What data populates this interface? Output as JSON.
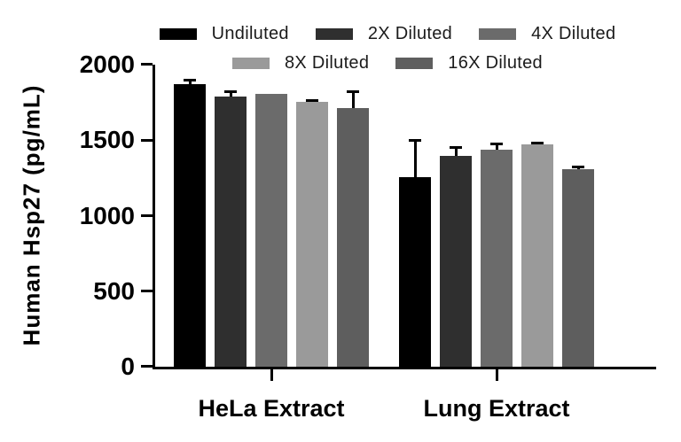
{
  "chart_data": {
    "type": "bar",
    "title": "",
    "ylabel": "Human Hsp27 (pg/mL)",
    "xlabel": "",
    "ylim": [
      0,
      2000
    ],
    "yticks": [
      0,
      500,
      1000,
      1500,
      2000
    ],
    "ytick_labels": [
      "2000",
      "1500",
      "1000",
      "500",
      "0"
    ],
    "categories": [
      "HeLa Extract",
      "Lung Extract"
    ],
    "series": [
      {
        "name": "Undiluted",
        "color": "#000000",
        "values": [
          1870,
          1258
        ],
        "errors_plus": [
          35,
          255
        ]
      },
      {
        "name": "2X Diluted",
        "color": "#2f2f2f",
        "values": [
          1790,
          1398
        ],
        "errors_plus": [
          40,
          65
        ]
      },
      {
        "name": "4X Diluted",
        "color": "#6b6b6b",
        "values": [
          1805,
          1437
        ],
        "errors_plus": [
          0,
          45
        ]
      },
      {
        "name": "8X Diluted",
        "color": "#9a9a9a",
        "values": [
          1755,
          1472
        ],
        "errors_plus": [
          15,
          15
        ]
      },
      {
        "name": "16X Diluted",
        "color": "#5e5e5e",
        "values": [
          1712,
          1305
        ],
        "errors_plus": [
          120,
          22
        ]
      }
    ],
    "error_bar_color": "#000000",
    "grid": false,
    "legend_position": "top",
    "legend_rows": [
      [
        0,
        1,
        2
      ],
      [
        3,
        4
      ]
    ]
  }
}
